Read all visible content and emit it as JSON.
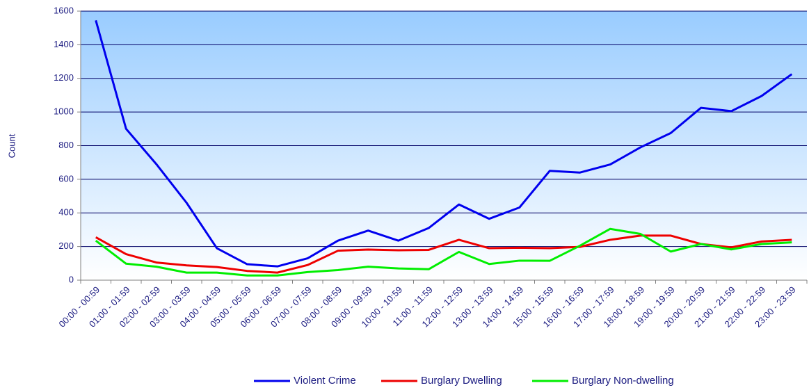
{
  "chart_data": {
    "type": "line",
    "ylabel": "Count",
    "categories": [
      "00:00 - 00:59",
      "01:00 - 01:59",
      "02:00 - 02:59",
      "03:00 - 03:59",
      "04:00 - 04:59",
      "05:00 - 05:59",
      "06:00 - 06:59",
      "07:00 - 07:59",
      "08:00 - 08:59",
      "09:00 - 09:59",
      "10:00 - 10:59",
      "11:00 - 11:59",
      "12:00 - 12:59",
      "13:00 - 13:59",
      "14:00 - 14:59",
      "15:00 - 15:59",
      "16:00 - 16:59",
      "17:00 - 17:59",
      "18:00 - 18:59",
      "19:00 - 19:59",
      "20:00 - 20:59",
      "21:00 - 21:59",
      "22:00 - 22:59",
      "23:00 - 23:59"
    ],
    "series": [
      {
        "name": "Violent Crime",
        "color": "#0000ee",
        "values": [
          1545,
          900,
          690,
          460,
          190,
          95,
          82,
          130,
          235,
          295,
          235,
          310,
          450,
          365,
          432,
          650,
          640,
          688,
          790,
          875,
          1025,
          1005,
          1095,
          1225
        ]
      },
      {
        "name": "Burglary Dwelling",
        "color": "#ee0000",
        "values": [
          255,
          155,
          105,
          88,
          78,
          55,
          45,
          90,
          175,
          182,
          178,
          180,
          240,
          190,
          193,
          190,
          198,
          240,
          265,
          265,
          215,
          195,
          230,
          240
        ]
      },
      {
        "name": "Burglary Non-dwelling",
        "color": "#00ee00",
        "values": [
          235,
          98,
          80,
          45,
          45,
          28,
          28,
          48,
          60,
          80,
          70,
          65,
          168,
          96,
          116,
          115,
          205,
          305,
          275,
          170,
          215,
          183,
          215,
          225
        ]
      }
    ],
    "ylim": [
      0,
      1600
    ],
    "yticks": [
      0,
      200,
      400,
      600,
      800,
      1000,
      1200,
      1400,
      1600
    ],
    "grid": true,
    "legend": "bottom"
  }
}
